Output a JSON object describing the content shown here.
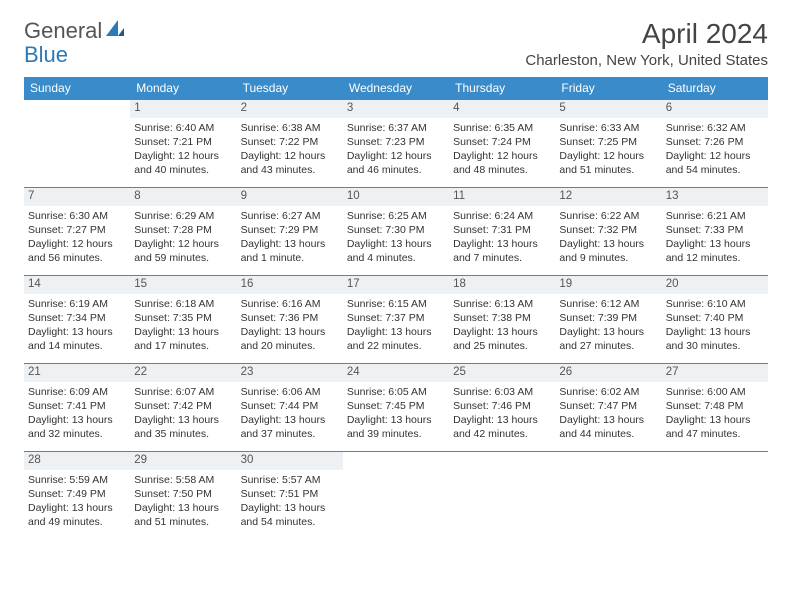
{
  "brand": {
    "word1": "General",
    "word2": "Blue"
  },
  "title": "April 2024",
  "location": "Charleston, New York, United States",
  "colors": {
    "header_bg": "#3a8bc9",
    "header_text": "#ffffff",
    "daynum_bg": "#eef1f3",
    "row_border": "#3a8bc9",
    "body_text": "#333333",
    "page_bg": "#ffffff"
  },
  "typography": {
    "title_fontsize": 28,
    "location_fontsize": 15,
    "weekday_fontsize": 12,
    "cell_fontsize": 10.5
  },
  "weekdays": [
    "Sunday",
    "Monday",
    "Tuesday",
    "Wednesday",
    "Thursday",
    "Friday",
    "Saturday"
  ],
  "layout": {
    "first_weekday_index": 1,
    "days_in_month": 30,
    "rows": 5,
    "cols": 7
  },
  "days": [
    {
      "n": 1,
      "sunrise": "6:40 AM",
      "sunset": "7:21 PM",
      "daylight": "12 hours and 40 minutes."
    },
    {
      "n": 2,
      "sunrise": "6:38 AM",
      "sunset": "7:22 PM",
      "daylight": "12 hours and 43 minutes."
    },
    {
      "n": 3,
      "sunrise": "6:37 AM",
      "sunset": "7:23 PM",
      "daylight": "12 hours and 46 minutes."
    },
    {
      "n": 4,
      "sunrise": "6:35 AM",
      "sunset": "7:24 PM",
      "daylight": "12 hours and 48 minutes."
    },
    {
      "n": 5,
      "sunrise": "6:33 AM",
      "sunset": "7:25 PM",
      "daylight": "12 hours and 51 minutes."
    },
    {
      "n": 6,
      "sunrise": "6:32 AM",
      "sunset": "7:26 PM",
      "daylight": "12 hours and 54 minutes."
    },
    {
      "n": 7,
      "sunrise": "6:30 AM",
      "sunset": "7:27 PM",
      "daylight": "12 hours and 56 minutes."
    },
    {
      "n": 8,
      "sunrise": "6:29 AM",
      "sunset": "7:28 PM",
      "daylight": "12 hours and 59 minutes."
    },
    {
      "n": 9,
      "sunrise": "6:27 AM",
      "sunset": "7:29 PM",
      "daylight": "13 hours and 1 minute."
    },
    {
      "n": 10,
      "sunrise": "6:25 AM",
      "sunset": "7:30 PM",
      "daylight": "13 hours and 4 minutes."
    },
    {
      "n": 11,
      "sunrise": "6:24 AM",
      "sunset": "7:31 PM",
      "daylight": "13 hours and 7 minutes."
    },
    {
      "n": 12,
      "sunrise": "6:22 AM",
      "sunset": "7:32 PM",
      "daylight": "13 hours and 9 minutes."
    },
    {
      "n": 13,
      "sunrise": "6:21 AM",
      "sunset": "7:33 PM",
      "daylight": "13 hours and 12 minutes."
    },
    {
      "n": 14,
      "sunrise": "6:19 AM",
      "sunset": "7:34 PM",
      "daylight": "13 hours and 14 minutes."
    },
    {
      "n": 15,
      "sunrise": "6:18 AM",
      "sunset": "7:35 PM",
      "daylight": "13 hours and 17 minutes."
    },
    {
      "n": 16,
      "sunrise": "6:16 AM",
      "sunset": "7:36 PM",
      "daylight": "13 hours and 20 minutes."
    },
    {
      "n": 17,
      "sunrise": "6:15 AM",
      "sunset": "7:37 PM",
      "daylight": "13 hours and 22 minutes."
    },
    {
      "n": 18,
      "sunrise": "6:13 AM",
      "sunset": "7:38 PM",
      "daylight": "13 hours and 25 minutes."
    },
    {
      "n": 19,
      "sunrise": "6:12 AM",
      "sunset": "7:39 PM",
      "daylight": "13 hours and 27 minutes."
    },
    {
      "n": 20,
      "sunrise": "6:10 AM",
      "sunset": "7:40 PM",
      "daylight": "13 hours and 30 minutes."
    },
    {
      "n": 21,
      "sunrise": "6:09 AM",
      "sunset": "7:41 PM",
      "daylight": "13 hours and 32 minutes."
    },
    {
      "n": 22,
      "sunrise": "6:07 AM",
      "sunset": "7:42 PM",
      "daylight": "13 hours and 35 minutes."
    },
    {
      "n": 23,
      "sunrise": "6:06 AM",
      "sunset": "7:44 PM",
      "daylight": "13 hours and 37 minutes."
    },
    {
      "n": 24,
      "sunrise": "6:05 AM",
      "sunset": "7:45 PM",
      "daylight": "13 hours and 39 minutes."
    },
    {
      "n": 25,
      "sunrise": "6:03 AM",
      "sunset": "7:46 PM",
      "daylight": "13 hours and 42 minutes."
    },
    {
      "n": 26,
      "sunrise": "6:02 AM",
      "sunset": "7:47 PM",
      "daylight": "13 hours and 44 minutes."
    },
    {
      "n": 27,
      "sunrise": "6:00 AM",
      "sunset": "7:48 PM",
      "daylight": "13 hours and 47 minutes."
    },
    {
      "n": 28,
      "sunrise": "5:59 AM",
      "sunset": "7:49 PM",
      "daylight": "13 hours and 49 minutes."
    },
    {
      "n": 29,
      "sunrise": "5:58 AM",
      "sunset": "7:50 PM",
      "daylight": "13 hours and 51 minutes."
    },
    {
      "n": 30,
      "sunrise": "5:57 AM",
      "sunset": "7:51 PM",
      "daylight": "13 hours and 54 minutes."
    }
  ],
  "labels": {
    "sunrise": "Sunrise:",
    "sunset": "Sunset:",
    "daylight": "Daylight:"
  }
}
